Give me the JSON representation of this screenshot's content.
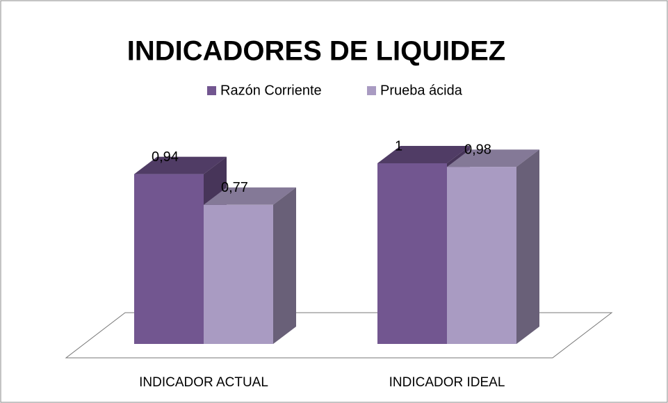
{
  "chart_data": {
    "type": "bar",
    "title": "INDICADORES DE LIQUIDEZ",
    "categories": [
      "INDICADOR ACTUAL",
      "INDICADOR IDEAL"
    ],
    "series": [
      {
        "name": "Razón Corriente",
        "color": "#725690",
        "values": [
          0.94,
          1
        ],
        "value_labels": [
          "0,94",
          "1"
        ]
      },
      {
        "name": "Prueba ácida",
        "color": "#a99bc2",
        "values": [
          0.77,
          0.98
        ],
        "value_labels": [
          "0,77",
          "0,98"
        ]
      }
    ]
  }
}
